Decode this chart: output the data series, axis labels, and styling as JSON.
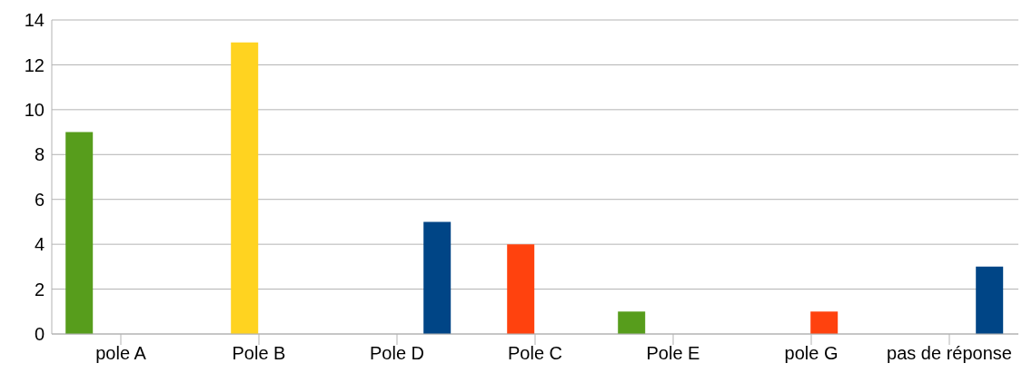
{
  "chart_data": {
    "type": "bar",
    "categories": [
      "pole A",
      "Pole B",
      "Pole D",
      "Pole C",
      "Pole E",
      "pole G",
      "pas de réponse"
    ],
    "series": [
      {
        "color": "#579d1c",
        "values": [
          9,
          null,
          null,
          null,
          1,
          null,
          null
        ]
      },
      {
        "color": "#ffd320",
        "colors": [
          "#ffd320",
          "#ffd320",
          "#ffd320",
          "#ff420e",
          "#ffd320",
          "#ffd320",
          "#ffd320"
        ],
        "values": [
          null,
          13,
          null,
          4,
          null,
          null,
          null
        ]
      },
      {
        "color": "#ff420e",
        "values": [
          null,
          null,
          null,
          null,
          null,
          1,
          null
        ]
      },
      {
        "color": "#004586",
        "values": [
          null,
          null,
          5,
          null,
          null,
          null,
          3
        ]
      }
    ],
    "ylim": [
      0,
      14
    ],
    "yticks": [
      0,
      2,
      4,
      6,
      8,
      10,
      12,
      14
    ],
    "grid": "y"
  }
}
